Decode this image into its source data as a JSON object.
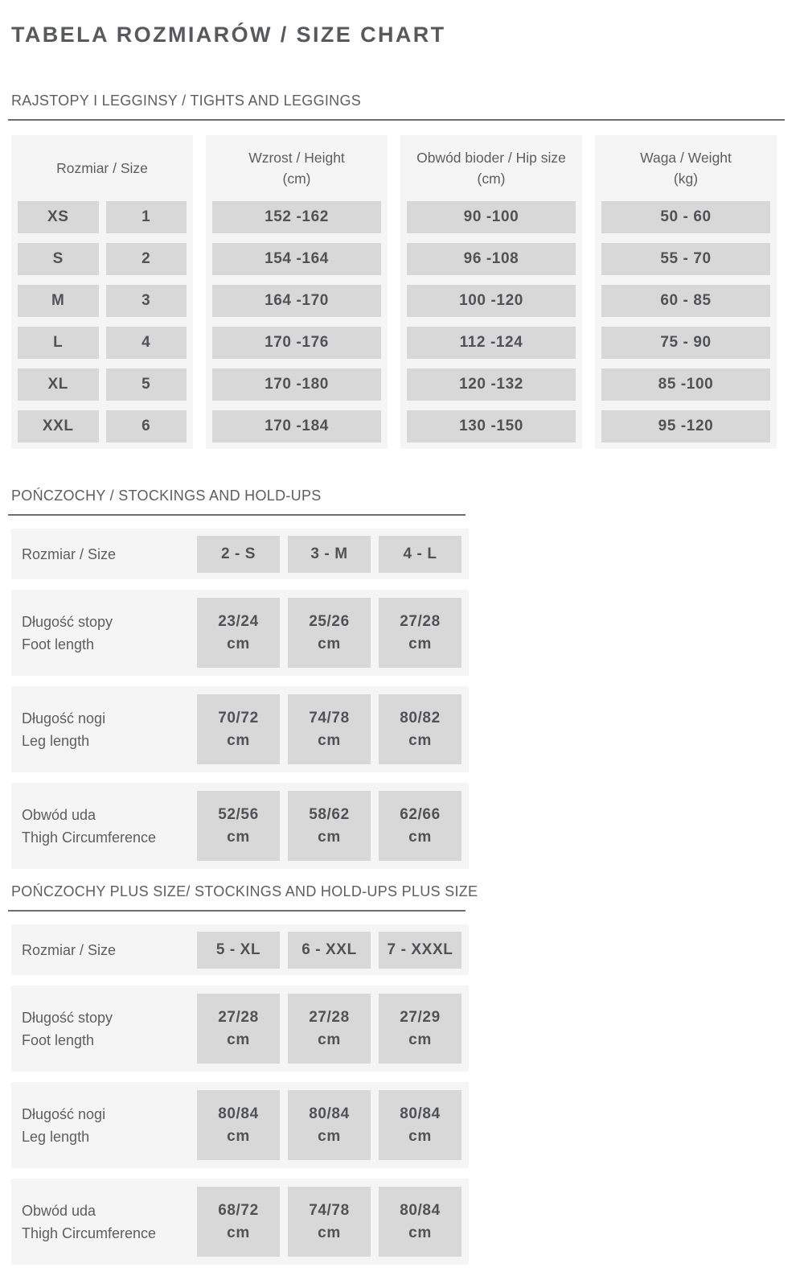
{
  "title": "TABELA ROZMIARÓW / SIZE CHART",
  "colors": {
    "panel_bg": "#f5f5f5",
    "cell_bg": "#d8d8d8",
    "text": "#55565a",
    "divider": "#6e6f71"
  },
  "section1": {
    "heading": "RAJSTOPY I LEGGINSY / TIGHTS AND LEGGINGS",
    "columns": {
      "size": {
        "title": "Rozmiar / Size",
        "subtitle": ""
      },
      "height": {
        "title": "Wzrost / Height",
        "subtitle": "(cm)"
      },
      "hip": {
        "title": "Obwód bioder / Hip size",
        "subtitle": "(cm)"
      },
      "weight": {
        "title": "Waga / Weight",
        "subtitle": "(kg)"
      }
    },
    "sizes": [
      "XS",
      "S",
      "M",
      "L",
      "XL",
      "XXL"
    ],
    "numbers": [
      "1",
      "2",
      "3",
      "4",
      "5",
      "6"
    ],
    "heights": [
      "152 -162",
      "154 -164",
      "164 -170",
      "170 -176",
      "170 -180",
      "170 -184"
    ],
    "hips": [
      "90 -100",
      "96 -108",
      "100 -120",
      "112 -124",
      "120 -132",
      "130 -150"
    ],
    "weights": [
      "50 - 60",
      "55 - 70",
      "60 - 85",
      "75 - 90",
      "85 -100",
      "95 -120"
    ]
  },
  "section2": {
    "heading": "POŃCZOCHY / STOCKINGS AND HOLD-UPS",
    "size_row": {
      "label": "Rozmiar / Size",
      "values": [
        "2 - S",
        "3 - M",
        "4 - L"
      ]
    },
    "rows": [
      {
        "label_pl": "Długość stopy",
        "label_en": "Foot length",
        "values": [
          "23/24",
          "25/26",
          "27/28"
        ],
        "unit": "cm"
      },
      {
        "label_pl": "Długość nogi",
        "label_en": "Leg length",
        "values": [
          "70/72",
          "74/78",
          "80/82"
        ],
        "unit": "cm"
      },
      {
        "label_pl": "Obwód uda",
        "label_en": "Thigh Circumference",
        "values": [
          "52/56",
          "58/62",
          "62/66"
        ],
        "unit": "cm"
      }
    ]
  },
  "section3": {
    "heading": "POŃCZOCHY PLUS SIZE/ STOCKINGS AND HOLD-UPS PLUS SIZE",
    "size_row": {
      "label": "Rozmiar / Size",
      "values": [
        "5 - XL",
        "6 - XXL",
        "7 - XXXL"
      ]
    },
    "rows": [
      {
        "label_pl": "Długość stopy",
        "label_en": "Foot length",
        "values": [
          "27/28",
          "27/28",
          "27/29"
        ],
        "unit": "cm"
      },
      {
        "label_pl": "Długość nogi",
        "label_en": "Leg length",
        "values": [
          "80/84",
          "80/84",
          "80/84"
        ],
        "unit": "cm"
      },
      {
        "label_pl": "Obwód uda",
        "label_en": "Thigh Circumference",
        "values": [
          "68/72",
          "74/78",
          "80/84"
        ],
        "unit": "cm"
      }
    ]
  }
}
